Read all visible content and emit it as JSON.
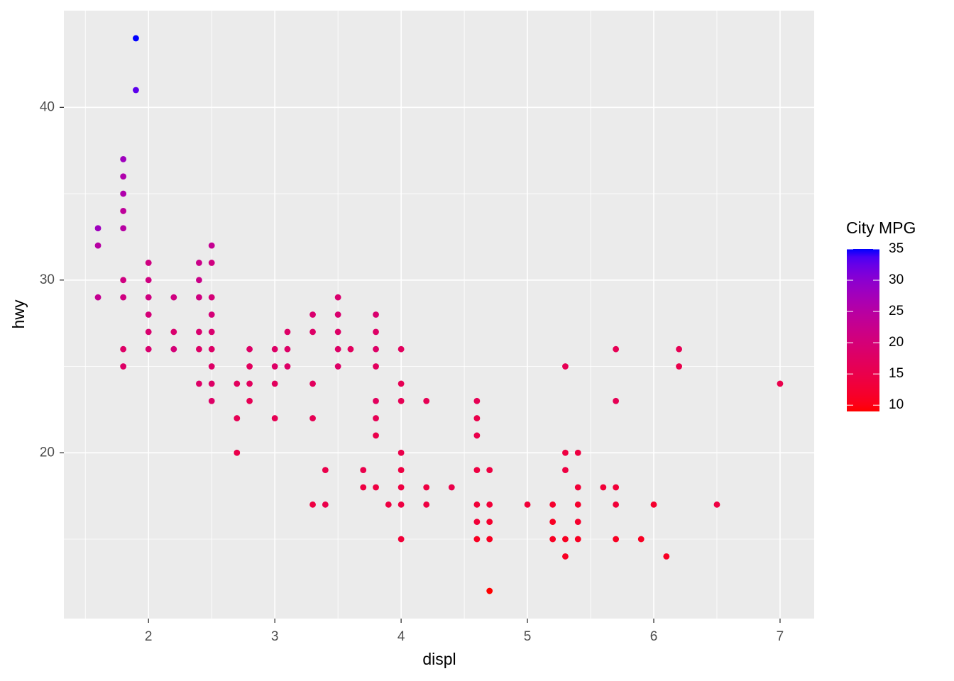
{
  "chart_data": {
    "type": "scatter",
    "x_label": "displ",
    "y_label": "hwy",
    "x": [
      1.6,
      1.6,
      1.6,
      1.8,
      1.8,
      1.8,
      1.8,
      1.8,
      1.8,
      1.8,
      1.8,
      1.8,
      1.9,
      1.9,
      2.0,
      2.0,
      2.0,
      2.0,
      2.0,
      2.0,
      2.2,
      2.2,
      2.2,
      2.4,
      2.4,
      2.4,
      2.4,
      2.4,
      2.4,
      2.5,
      2.5,
      2.5,
      2.5,
      2.5,
      2.5,
      2.5,
      2.5,
      2.5,
      2.7,
      2.7,
      2.7,
      2.8,
      2.8,
      2.8,
      2.8,
      3.0,
      3.0,
      3.0,
      3.0,
      3.1,
      3.1,
      3.1,
      3.3,
      3.3,
      3.3,
      3.3,
      3.3,
      3.4,
      3.4,
      3.5,
      3.5,
      3.5,
      3.5,
      3.5,
      3.6,
      3.7,
      3.7,
      3.8,
      3.8,
      3.8,
      3.8,
      3.8,
      3.8,
      3.8,
      3.8,
      3.9,
      4.0,
      4.0,
      4.0,
      4.0,
      4.0,
      4.0,
      4.0,
      4.0,
      4.2,
      4.2,
      4.2,
      4.4,
      4.6,
      4.6,
      4.6,
      4.6,
      4.6,
      4.6,
      4.6,
      4.7,
      4.7,
      4.7,
      4.7,
      4.7,
      5.0,
      5.2,
      5.2,
      5.2,
      5.3,
      5.3,
      5.3,
      5.3,
      5.3,
      5.4,
      5.4,
      5.4,
      5.4,
      5.4,
      5.6,
      5.7,
      5.7,
      5.7,
      5.7,
      5.7,
      5.9,
      6.0,
      6.1,
      6.2,
      6.2,
      6.5,
      7.0
    ],
    "values": [
      33,
      32,
      29,
      37,
      36,
      35,
      34,
      33,
      30,
      29,
      26,
      25,
      44,
      41,
      31,
      30,
      29,
      28,
      27,
      26,
      29,
      27,
      26,
      31,
      30,
      29,
      27,
      26,
      24,
      32,
      31,
      29,
      28,
      27,
      26,
      25,
      24,
      23,
      24,
      22,
      20,
      26,
      25,
      24,
      23,
      26,
      25,
      24,
      22,
      27,
      26,
      25,
      28,
      27,
      24,
      22,
      17,
      19,
      17,
      29,
      28,
      27,
      26,
      25,
      26,
      19,
      18,
      28,
      27,
      26,
      25,
      23,
      22,
      21,
      18,
      17,
      26,
      24,
      23,
      20,
      19,
      18,
      17,
      15,
      23,
      18,
      17,
      18,
      23,
      22,
      21,
      19,
      17,
      16,
      15,
      19,
      17,
      16,
      15,
      12,
      17,
      17,
      16,
      15,
      25,
      20,
      19,
      15,
      14,
      20,
      18,
      17,
      16,
      15,
      18,
      26,
      23,
      18,
      17,
      15,
      15,
      17,
      14,
      26,
      25,
      17,
      24
    ],
    "color_values": [
      28,
      25,
      23,
      28,
      26,
      26,
      24,
      25,
      21,
      21,
      18,
      18,
      35,
      33,
      21,
      21,
      21,
      20,
      19,
      19,
      21,
      19,
      20,
      22,
      22,
      21,
      19,
      18,
      18,
      23,
      21,
      20,
      20,
      19,
      18,
      18,
      18,
      18,
      17,
      16,
      15,
      18,
      17,
      17,
      16,
      18,
      18,
      17,
      16,
      18,
      18,
      18,
      19,
      18,
      17,
      16,
      14,
      15,
      15,
      19,
      19,
      18,
      18,
      18,
      17,
      15,
      14,
      19,
      18,
      18,
      17,
      17,
      16,
      15,
      14,
      14,
      17,
      16,
      16,
      15,
      14,
      14,
      14,
      13,
      16,
      14,
      14,
      15,
      16,
      15,
      15,
      14,
      13,
      13,
      11,
      14,
      13,
      12,
      11,
      9,
      13,
      12,
      11,
      11,
      16,
      14,
      14,
      11,
      11,
      14,
      13,
      12,
      12,
      11,
      13,
      16,
      16,
      13,
      13,
      11,
      11,
      12,
      11,
      16,
      15,
      14,
      15
    ],
    "xlim": [
      1.33,
      7.27
    ],
    "ylim": [
      10.4,
      45.6
    ],
    "xticks": [
      2,
      3,
      4,
      5,
      6,
      7
    ],
    "yticks": [
      20,
      30,
      40
    ],
    "xminor": [
      1.5,
      2.5,
      3.5,
      4.5,
      5.5,
      6.5
    ],
    "yminor": [
      15,
      25,
      35
    ],
    "grid": true,
    "legend": {
      "title": "City MPG",
      "limits": [
        9,
        35
      ],
      "ticks": [
        10,
        15,
        20,
        25,
        30,
        35
      ],
      "color_low": "#ff0000",
      "color_high": "#0000ff"
    }
  }
}
